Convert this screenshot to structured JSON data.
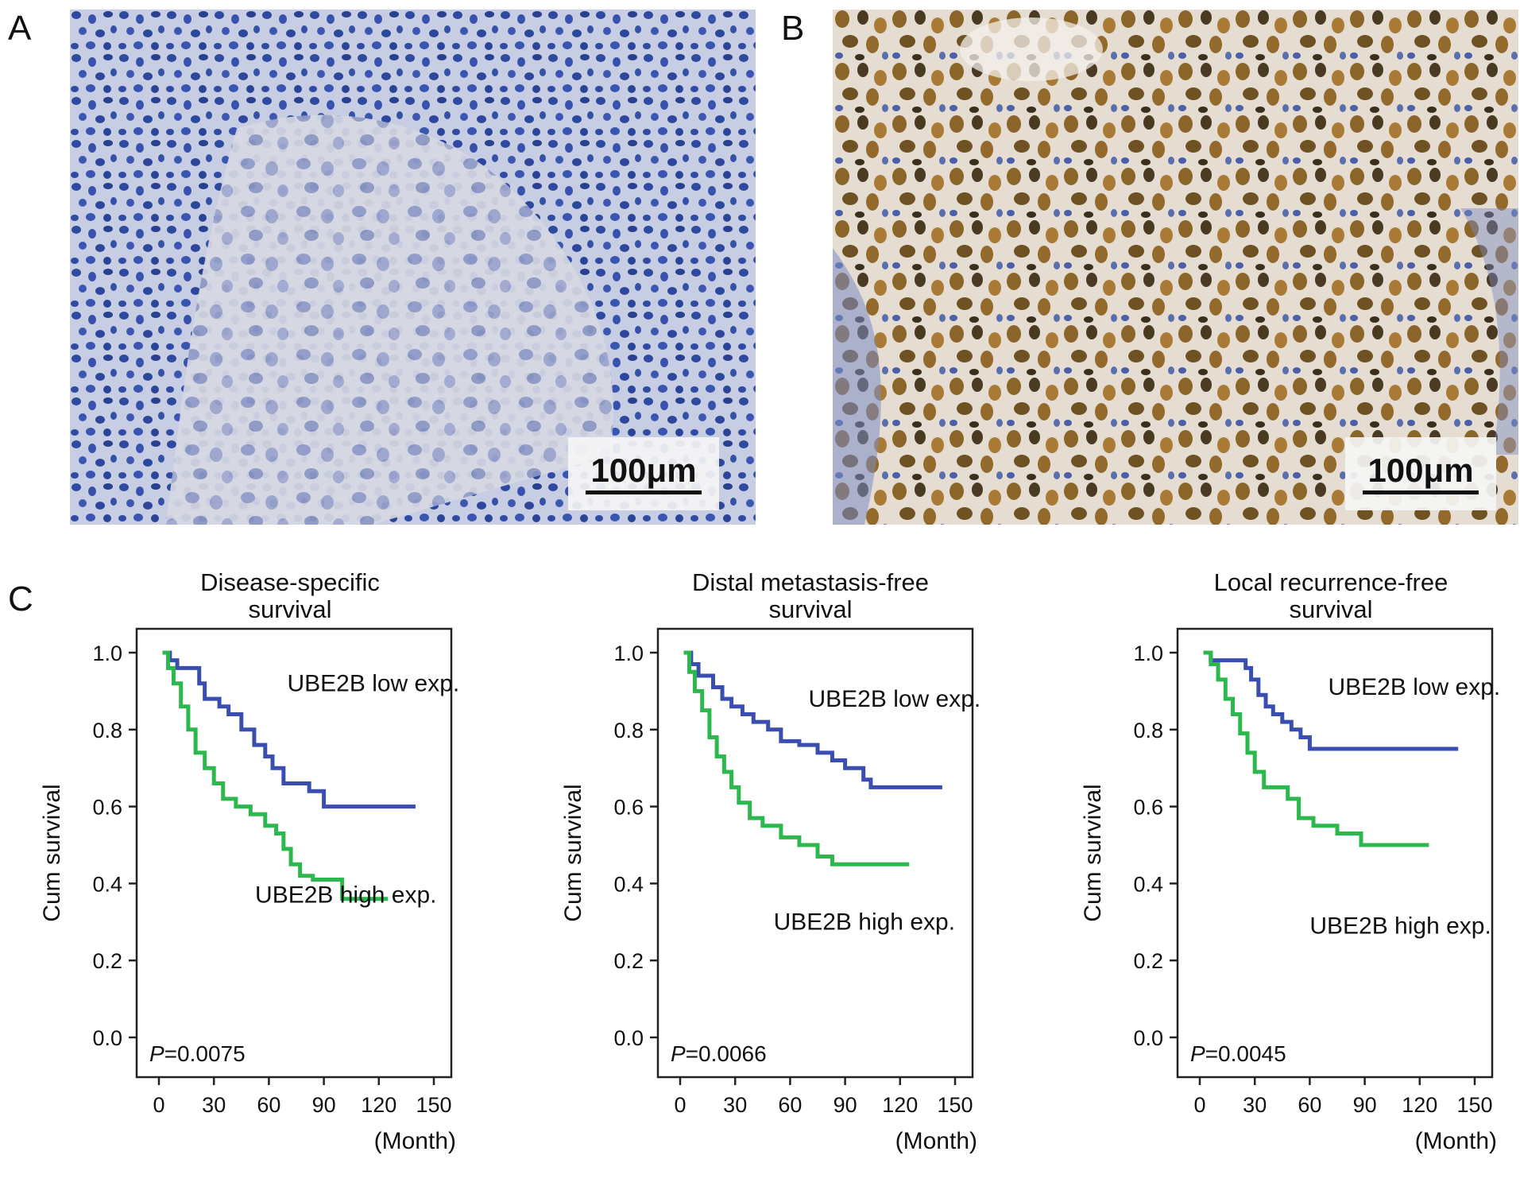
{
  "panels": {
    "a": {
      "letter": "A",
      "scale_label": "100μm"
    },
    "b": {
      "letter": "B",
      "scale_label": "100μm"
    },
    "c": {
      "letter": "C"
    }
  },
  "chart_data": [
    {
      "type": "line",
      "title": "Disease-specific survival",
      "title_lines": [
        "Disease-specific",
        "survival"
      ],
      "ylabel": "Cum survival",
      "xlabel": "(Month)",
      "xlim": [
        0,
        150
      ],
      "ylim": [
        0,
        1.0
      ],
      "xticks": [
        0,
        30,
        60,
        90,
        120,
        150
      ],
      "yticks": [
        0.0,
        0.2,
        0.4,
        0.6,
        0.8,
        1.0
      ],
      "ytick_labels": [
        "0.0",
        "0.2",
        "0.4",
        "0.6",
        "0.8",
        "1.0"
      ],
      "p_prefix": "P",
      "p_value": "=0.0075",
      "series": [
        {
          "name": "UBE2B low exp.",
          "color": "#3a4db0",
          "x": [
            2,
            6,
            10,
            22,
            25,
            33,
            38,
            45,
            52,
            58,
            62,
            68,
            82,
            90,
            140
          ],
          "y": [
            1.0,
            0.98,
            0.96,
            0.92,
            0.88,
            0.86,
            0.84,
            0.8,
            0.76,
            0.73,
            0.7,
            0.66,
            0.64,
            0.6,
            0.6
          ]
        },
        {
          "name": "UBE2B high exp.",
          "color": "#2db84d",
          "x": [
            2,
            5,
            8,
            12,
            16,
            20,
            25,
            30,
            35,
            42,
            50,
            58,
            64,
            68,
            72,
            77,
            84,
            100,
            125
          ],
          "y": [
            1.0,
            0.96,
            0.92,
            0.86,
            0.8,
            0.74,
            0.7,
            0.66,
            0.62,
            0.6,
            0.58,
            0.55,
            0.53,
            0.49,
            0.45,
            0.42,
            0.41,
            0.36,
            0.36
          ]
        }
      ]
    },
    {
      "type": "line",
      "title": "Distal metastasis-free survival",
      "title_lines": [
        "Distal metastasis-free",
        "survival"
      ],
      "ylabel": "Cum survival",
      "xlabel": "(Month)",
      "xlim": [
        0,
        150
      ],
      "ylim": [
        0,
        1.0
      ],
      "xticks": [
        0,
        30,
        60,
        90,
        120,
        150
      ],
      "yticks": [
        0.0,
        0.2,
        0.4,
        0.6,
        0.8,
        1.0
      ],
      "ytick_labels": [
        "0.0",
        "0.2",
        "0.4",
        "0.6",
        "0.8",
        "1.0"
      ],
      "p_prefix": "P",
      "p_value": "=0.0066",
      "series": [
        {
          "name": "UBE2B low exp.",
          "color": "#3a4db0",
          "x": [
            2,
            6,
            10,
            18,
            23,
            28,
            34,
            40,
            48,
            55,
            65,
            75,
            83,
            90,
            100,
            104,
            143
          ],
          "y": [
            1.0,
            0.97,
            0.94,
            0.91,
            0.88,
            0.86,
            0.84,
            0.82,
            0.8,
            0.77,
            0.76,
            0.74,
            0.72,
            0.7,
            0.67,
            0.65,
            0.65
          ]
        },
        {
          "name": "UBE2B high exp.",
          "color": "#2db84d",
          "x": [
            2,
            5,
            8,
            12,
            16,
            20,
            24,
            28,
            32,
            38,
            45,
            55,
            65,
            75,
            83,
            125
          ],
          "y": [
            1.0,
            0.95,
            0.9,
            0.85,
            0.78,
            0.73,
            0.69,
            0.65,
            0.61,
            0.57,
            0.55,
            0.52,
            0.5,
            0.47,
            0.45,
            0.45
          ]
        }
      ]
    },
    {
      "type": "line",
      "title": "Local recurrence-free survival",
      "title_lines": [
        "Local recurrence-free",
        "survival"
      ],
      "ylabel": "Cum survival",
      "xlabel": "(Month)",
      "xlim": [
        0,
        150
      ],
      "ylim": [
        0,
        1.0
      ],
      "xticks": [
        0,
        30,
        60,
        90,
        120,
        150
      ],
      "yticks": [
        0.0,
        0.2,
        0.4,
        0.6,
        0.8,
        1.0
      ],
      "ytick_labels": [
        "0.0",
        "0.2",
        "0.4",
        "0.6",
        "0.8",
        "1.0"
      ],
      "p_prefix": "P",
      "p_value": "=0.0045",
      "series": [
        {
          "name": "UBE2B low exp.",
          "color": "#3a4db0",
          "x": [
            2,
            6,
            25,
            28,
            32,
            36,
            40,
            45,
            50,
            55,
            60,
            141
          ],
          "y": [
            1.0,
            0.98,
            0.96,
            0.93,
            0.89,
            0.86,
            0.84,
            0.82,
            0.8,
            0.78,
            0.75,
            0.75
          ]
        },
        {
          "name": "UBE2B high exp.",
          "color": "#2db84d",
          "x": [
            2,
            6,
            10,
            14,
            18,
            22,
            26,
            30,
            35,
            48,
            54,
            62,
            75,
            88,
            125
          ],
          "y": [
            1.0,
            0.97,
            0.93,
            0.88,
            0.84,
            0.79,
            0.74,
            0.69,
            0.65,
            0.62,
            0.57,
            0.55,
            0.53,
            0.5,
            0.5
          ]
        }
      ]
    }
  ]
}
